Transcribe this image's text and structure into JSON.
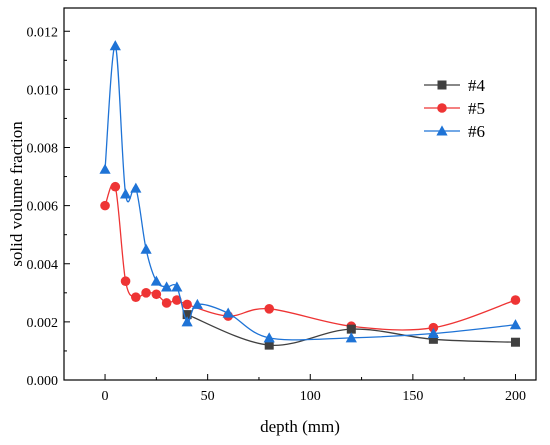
{
  "chart_data": {
    "type": "line",
    "xlabel": "depth (mm)",
    "ylabel": "solid volume fraction",
    "xlim": [
      -20,
      210
    ],
    "ylim": [
      0.0,
      0.0128
    ],
    "xticks": [
      0,
      50,
      100,
      150,
      200
    ],
    "yticks": [
      0.0,
      0.002,
      0.004,
      0.006,
      0.008,
      0.01,
      0.012
    ],
    "ytick_labels": [
      "0.000",
      "0.002",
      "0.004",
      "0.006",
      "0.008",
      "0.010",
      "0.012"
    ],
    "grid": false,
    "legend_placement": "top-right",
    "series": [
      {
        "name": "#4",
        "color": "#404040",
        "marker": "square",
        "x": [
          40,
          80,
          120,
          160,
          200
        ],
        "y": [
          0.00225,
          0.0012,
          0.00175,
          0.0014,
          0.0013
        ]
      },
      {
        "name": "#5",
        "color": "#ee3434",
        "marker": "circle",
        "x": [
          0,
          5,
          10,
          15,
          20,
          25,
          30,
          35,
          40,
          60,
          80,
          120,
          160,
          200
        ],
        "y": [
          0.006,
          0.00665,
          0.0034,
          0.00285,
          0.003,
          0.00295,
          0.00265,
          0.00275,
          0.0026,
          0.0022,
          0.00245,
          0.00185,
          0.0018,
          0.00275
        ]
      },
      {
        "name": "#6",
        "color": "#1e73d6",
        "marker": "triangle",
        "x": [
          0,
          5,
          10,
          15,
          20,
          25,
          30,
          35,
          40,
          45,
          60,
          80,
          120,
          160,
          200
        ],
        "y": [
          0.00725,
          0.0115,
          0.0064,
          0.0066,
          0.0045,
          0.0034,
          0.0032,
          0.0032,
          0.002,
          0.0026,
          0.0023,
          0.00145,
          0.00145,
          0.0016,
          0.0019
        ]
      }
    ]
  }
}
